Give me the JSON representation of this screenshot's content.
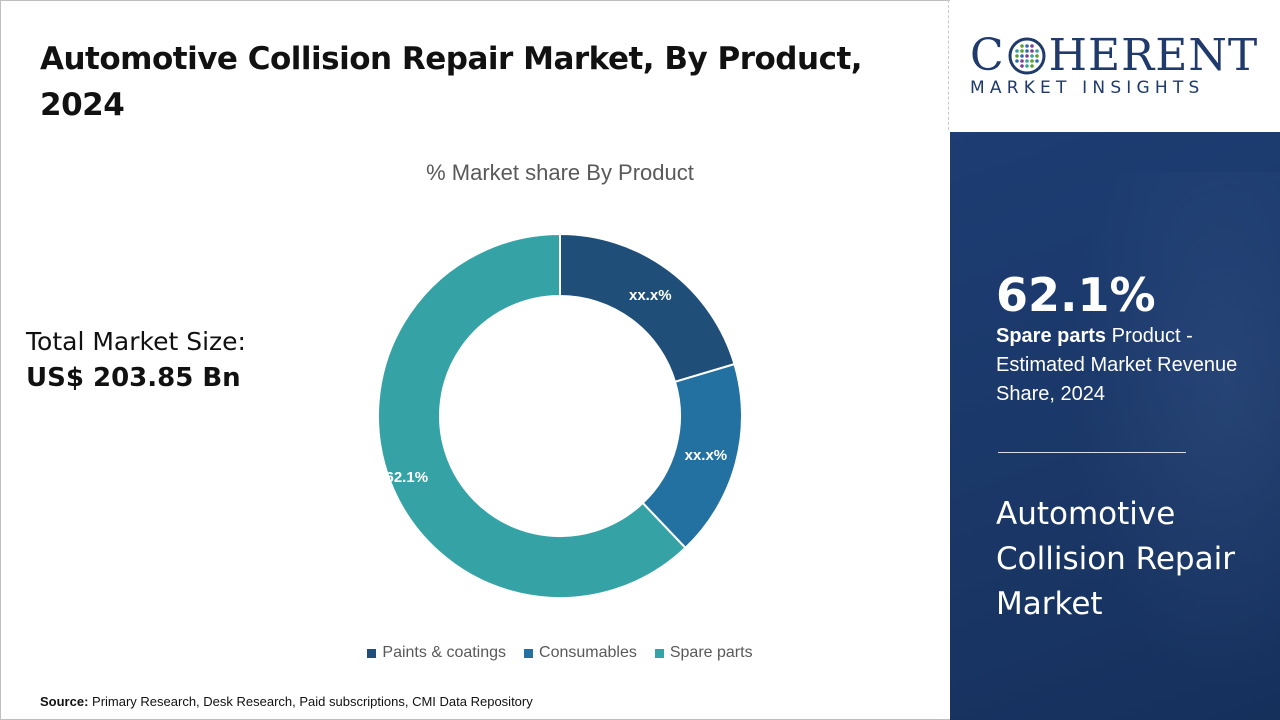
{
  "title": "Automotive Collision Repair Market, By Product, 2024",
  "market_size": {
    "label": "Total Market Size:",
    "value": "US$ 203.85 Bn"
  },
  "chart_data": {
    "type": "pie",
    "title": "% Market share By Product",
    "categories": [
      "Paints & coatings",
      "Consumables",
      "Spare parts"
    ],
    "values": [
      20.4,
      17.5,
      62.1
    ],
    "data_labels": [
      "xx.x%",
      "xx.x%",
      "62.1%"
    ],
    "colors": [
      "#1f4e79",
      "#2271a0",
      "#35a3a6"
    ],
    "legend_position": "bottom",
    "donut": true
  },
  "source": {
    "label": "Source:",
    "text": "Primary Research, Desk Research, Paid subscriptions, CMI Data Repository"
  },
  "logo": {
    "name_left": "C",
    "name_right": "HERENT",
    "tagline": "MARKET INSIGHTS"
  },
  "side_panel": {
    "highlight_value": "62.1%",
    "highlight_bold": "Spare parts",
    "highlight_rest": " Product - Estimated Market Revenue Share, 2024",
    "market_name": "Automotive Collision Repair Market"
  }
}
